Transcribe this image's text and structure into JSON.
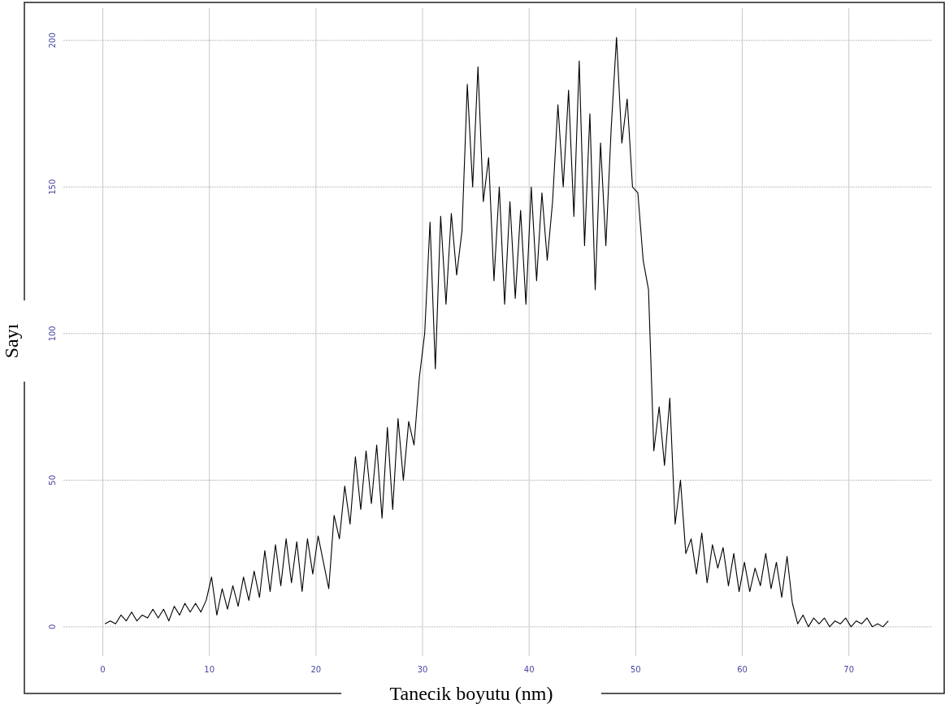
{
  "chart_data": {
    "type": "line",
    "xlabel": "Tanecik boyutu (nm)",
    "ylabel": "Sayı",
    "xlim": [
      -3.7,
      77.8
    ],
    "ylim": [
      -10,
      211
    ],
    "xticks": [
      0,
      10,
      20,
      30,
      40,
      50,
      60,
      70
    ],
    "yticks": [
      0,
      50,
      100,
      150,
      200
    ],
    "grid": true,
    "marker": "none",
    "line_style": "solid",
    "series": [
      {
        "color": "#000000",
        "x": [
          0.2,
          0.7,
          1.2,
          1.7,
          2.2,
          2.7,
          3.2,
          3.7,
          4.2,
          4.7,
          5.2,
          5.7,
          6.2,
          6.7,
          7.2,
          7.7,
          8.2,
          8.7,
          9.2,
          9.7,
          10.2,
          10.7,
          11.2,
          11.7,
          12.2,
          12.7,
          13.2,
          13.7,
          14.2,
          14.7,
          15.2,
          15.7,
          16.2,
          16.7,
          17.2,
          17.7,
          18.2,
          18.7,
          19.2,
          19.7,
          20.2,
          20.7,
          21.2,
          21.7,
          22.2,
          22.7,
          23.2,
          23.7,
          24.2,
          24.7,
          25.2,
          25.7,
          26.2,
          26.7,
          27.2,
          27.7,
          28.2,
          28.7,
          29.2,
          29.7,
          30.2,
          30.7,
          31.2,
          31.7,
          32.2,
          32.7,
          33.2,
          33.7,
          34.2,
          34.7,
          35.2,
          35.7,
          36.2,
          36.7,
          37.2,
          37.7,
          38.2,
          38.7,
          39.2,
          39.7,
          40.2,
          40.7,
          41.2,
          41.7,
          42.2,
          42.7,
          43.2,
          43.7,
          44.2,
          44.7,
          45.2,
          45.7,
          46.2,
          46.7,
          47.2,
          47.7,
          48.2,
          48.7,
          49.2,
          49.7,
          50.2,
          50.7,
          51.2,
          51.7,
          52.2,
          52.7,
          53.2,
          53.7,
          54.2,
          54.7,
          55.2,
          55.7,
          56.2,
          56.7,
          57.2,
          57.7,
          58.2,
          58.7,
          59.2,
          59.7,
          60.2,
          60.7,
          61.2,
          61.7,
          62.2,
          62.7,
          63.2,
          63.7,
          64.2,
          64.7,
          65.2,
          65.7,
          66.2,
          66.7,
          67.2,
          67.7,
          68.2,
          68.7,
          69.2,
          69.7,
          70.2,
          70.7,
          71.2,
          71.7,
          72.2,
          72.7,
          73.2,
          73.7
        ],
        "values": [
          1,
          2,
          1,
          4,
          2,
          5,
          2,
          4,
          3,
          6,
          3,
          6,
          2,
          7,
          4,
          8,
          5,
          8,
          5,
          9,
          17,
          4,
          13,
          6,
          14,
          7,
          17,
          9,
          19,
          10,
          26,
          12,
          28,
          14,
          30,
          15,
          29,
          12,
          30,
          18,
          31,
          22,
          13,
          38,
          30,
          48,
          35,
          58,
          40,
          60,
          42,
          62,
          37,
          68,
          40,
          71,
          50,
          70,
          62,
          85,
          100,
          138,
          88,
          140,
          110,
          141,
          120,
          135,
          185,
          150,
          191,
          145,
          160,
          118,
          150,
          110,
          145,
          112,
          142,
          110,
          150,
          118,
          148,
          125,
          145,
          178,
          150,
          183,
          140,
          193,
          130,
          175,
          115,
          165,
          130,
          170,
          201,
          165,
          180,
          150,
          148,
          125,
          115,
          60,
          75,
          55,
          78,
          35,
          50,
          25,
          30,
          18,
          32,
          15,
          28,
          20,
          27,
          14,
          25,
          12,
          22,
          12,
          20,
          14,
          25,
          13,
          22,
          10,
          24,
          8,
          1,
          4,
          0,
          3,
          1,
          3,
          0,
          2,
          1,
          3,
          0,
          2,
          1,
          3,
          0,
          1,
          0,
          2
        ]
      }
    ]
  }
}
